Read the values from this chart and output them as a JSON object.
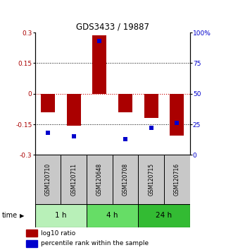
{
  "title": "GDS3433 / 19887",
  "samples": [
    "GSM120710",
    "GSM120711",
    "GSM120648",
    "GSM120708",
    "GSM120715",
    "GSM120716"
  ],
  "log10_ratio": [
    -0.09,
    -0.155,
    0.285,
    -0.09,
    -0.12,
    -0.205
  ],
  "percentile_rank": [
    18,
    15,
    93,
    13,
    22,
    26
  ],
  "groups": [
    {
      "label": "1 h",
      "indices": [
        0,
        1
      ],
      "color": "#b8f0b8"
    },
    {
      "label": "4 h",
      "indices": [
        2,
        3
      ],
      "color": "#66dd66"
    },
    {
      "label": "24 h",
      "indices": [
        4,
        5
      ],
      "color": "#33bb33"
    }
  ],
  "bar_color": "#aa0000",
  "dot_color": "#0000cc",
  "ylim": [
    -0.3,
    0.3
  ],
  "yticks_left": [
    -0.3,
    -0.15,
    0,
    0.15,
    0.3
  ],
  "yticks_right": [
    0,
    25,
    50,
    75,
    100
  ],
  "zero_line_color": "#cc0000",
  "grid_color": "#000000",
  "bar_width": 0.55,
  "legend_red_label": "log10 ratio",
  "legend_blue_label": "percentile rank within the sample",
  "time_label": "time",
  "background_color": "#ffffff"
}
